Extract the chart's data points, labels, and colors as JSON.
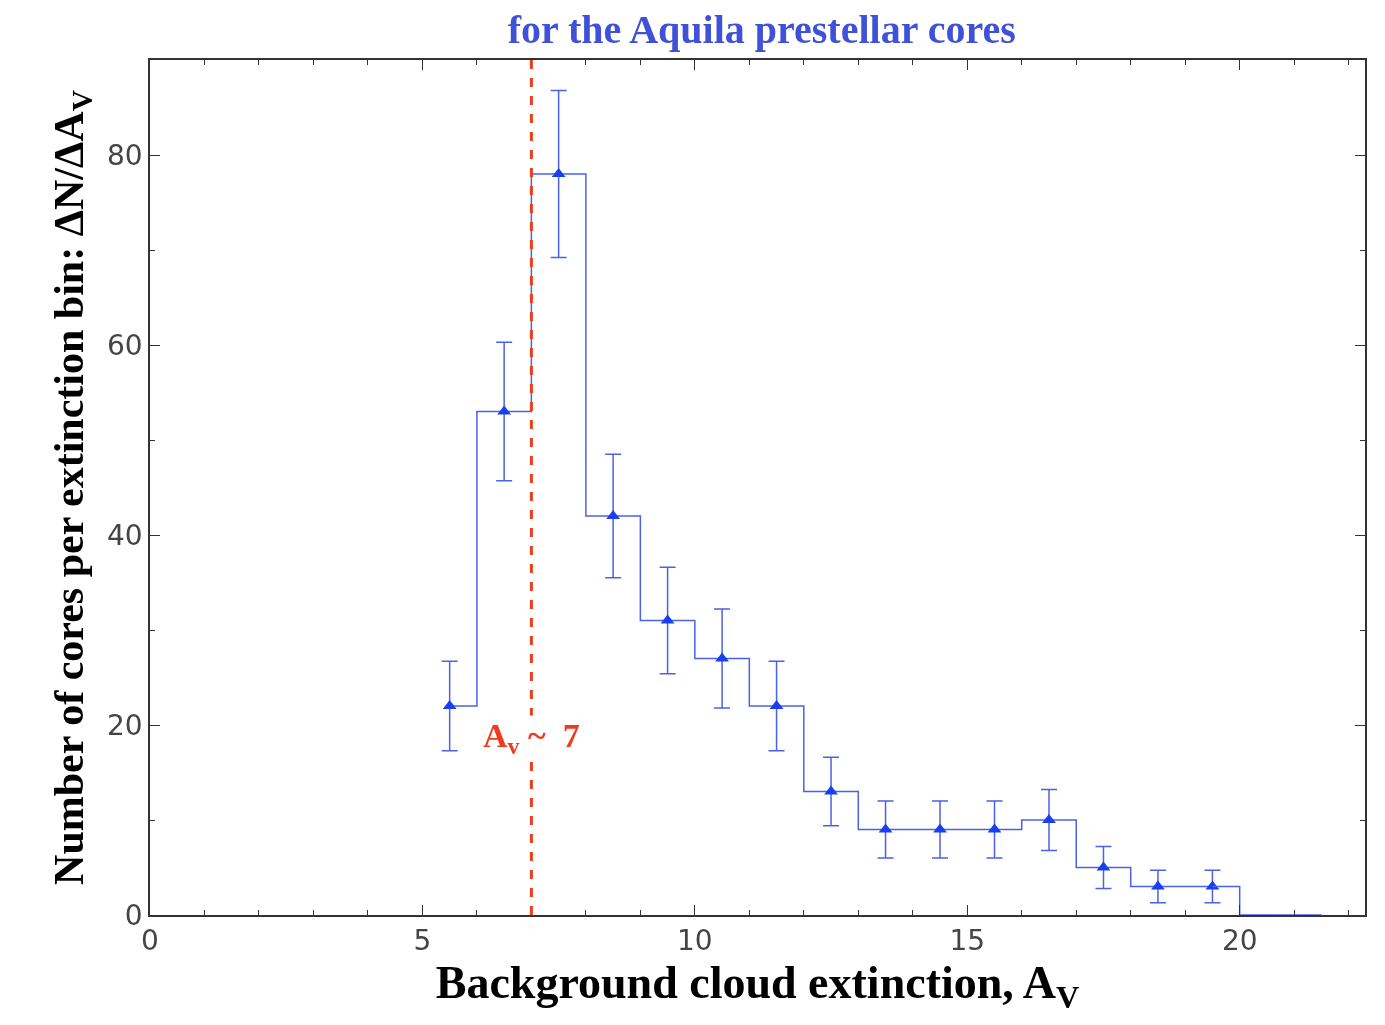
{
  "chart_data": {
    "type": "step",
    "title": "for the Aquila prestellar cores",
    "xlabel": "Background cloud extinction, A$_{V}$",
    "ylabel": "Number of cores per extinction bin: ΔN/ΔA$_{V}$",
    "series": [
      {
        "color": "#4a62e6",
        "marker": "triangle",
        "x": [
          5.5,
          6.5,
          7.5,
          8.5,
          9.5,
          10.5,
          11.5,
          12.5,
          13.5,
          14.5,
          15.5,
          16.5,
          17.5,
          18.5,
          19.5
        ],
        "values": [
          22,
          53,
          78,
          42,
          31,
          27,
          22,
          13,
          9,
          9,
          9,
          10,
          5,
          3,
          3
        ],
        "errors": [
          4.7,
          7.3,
          8.8,
          6.5,
          5.6,
          5.2,
          4.7,
          3.6,
          3,
          3,
          3,
          3.2,
          2.2,
          1.7,
          1.7
        ]
      },
      {
        "color": "#4a62e6",
        "x": [
          19.5,
          20.5,
          21.5
        ],
        "values": [
          3,
          0,
          0
        ]
      }
    ],
    "xlim": [
      0,
      22.3
    ],
    "ylim": [
      0,
      90
    ],
    "xticks": [
      0,
      5,
      10,
      15,
      20
    ],
    "yticks": [
      0,
      20,
      40,
      60,
      80
    ],
    "ref_lines": [
      {
        "axis": "x",
        "value": 7,
        "label": "A$_{v}$ ~  7",
        "color": "#f03c1e",
        "line_style": "dashed"
      }
    ]
  }
}
